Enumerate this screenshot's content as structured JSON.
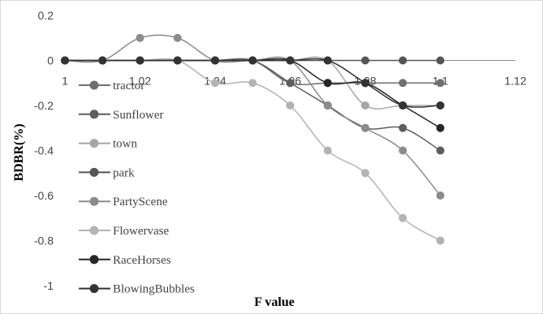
{
  "chart_data": {
    "type": "line",
    "title": "",
    "xlabel": "F value",
    "ylabel": "BDBR(%)",
    "xlim": [
      1,
      1.12
    ],
    "ylim": [
      -1,
      0.2
    ],
    "x_ticks": [
      "1",
      "1.02",
      "1.04",
      "1.06",
      "1.08",
      "1.1",
      "1.12"
    ],
    "y_ticks": [
      "0.2",
      "0",
      "-0.2",
      "-0.4",
      "-0.6",
      "-0.8",
      "-1"
    ],
    "grid": false,
    "legend_position": "left",
    "x": [
      1.0,
      1.01,
      1.02,
      1.03,
      1.04,
      1.05,
      1.06,
      1.07,
      1.08,
      1.09,
      1.1
    ],
    "series": [
      {
        "name": "tractor",
        "color": "#6f6f6f",
        "values": [
          0,
          0,
          0,
          0,
          0,
          0,
          -0.1,
          -0.1,
          -0.1,
          -0.1,
          -0.1
        ]
      },
      {
        "name": "Sunflower",
        "color": "#5e5e5e",
        "values": [
          0,
          0,
          0,
          0,
          0,
          0,
          -0.1,
          -0.2,
          -0.3,
          -0.3,
          -0.4
        ]
      },
      {
        "name": "town",
        "color": "#a6a6a6",
        "values": [
          0,
          0,
          0,
          0,
          0,
          0,
          0,
          0,
          -0.2,
          -0.2,
          -0.2
        ]
      },
      {
        "name": "park",
        "color": "#555555",
        "values": [
          0,
          0,
          0,
          0,
          0,
          0,
          0,
          0,
          0,
          0,
          0
        ]
      },
      {
        "name": "PartyScene",
        "color": "#8c8c8c",
        "values": [
          0,
          0,
          0.1,
          0.1,
          0,
          0,
          0,
          -0.2,
          -0.3,
          -0.4,
          -0.6
        ]
      },
      {
        "name": "Flowervase",
        "color": "#b3b3b3",
        "values": [
          0,
          0,
          0,
          0,
          -0.1,
          -0.1,
          -0.2,
          -0.4,
          -0.5,
          -0.7,
          -0.8
        ]
      },
      {
        "name": "RaceHorses",
        "color": "#262626",
        "values": [
          0,
          0,
          0,
          0,
          0,
          0,
          0,
          -0.1,
          -0.1,
          -0.2,
          -0.3
        ]
      },
      {
        "name": "BlowingBubbles",
        "color": "#333333",
        "values": [
          0,
          0,
          0,
          0,
          0,
          0,
          0,
          0,
          -0.1,
          -0.2,
          -0.2
        ]
      }
    ]
  }
}
